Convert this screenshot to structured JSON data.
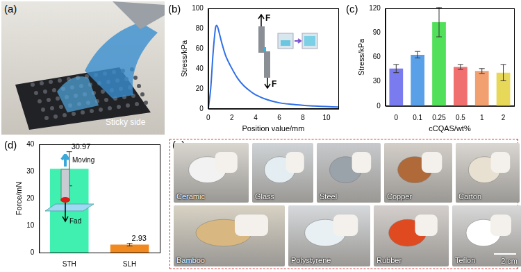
{
  "figure": {
    "panels": [
      {
        "label": "(a)",
        "caption": "Sticky side"
      },
      {
        "label": "(e)",
        "items": [
          "Ceramic",
          "Glass",
          "Steel",
          "Copper",
          "Carton",
          "Bamboo",
          "Polystyrene",
          "Rubber",
          "Teflon"
        ],
        "scale_bar": "2 cm"
      }
    ]
  },
  "chart_data": [
    {
      "panel": "(b)",
      "type": "line",
      "x": [
        0,
        0.2,
        0.4,
        0.6,
        0.7,
        0.8,
        1,
        1.2,
        1.5,
        2,
        2.5,
        3,
        3.5,
        4,
        5,
        6,
        7,
        8,
        9,
        10,
        11
      ],
      "values": [
        0,
        20,
        55,
        80,
        83,
        81,
        72,
        63,
        52,
        40,
        30,
        23,
        18,
        14,
        9,
        6,
        4.5,
        3.5,
        2.8,
        2.2,
        1.8
      ],
      "x_label": "Position value/mm",
      "y_label": "Stress/kPa",
      "xlim": [
        0,
        11
      ],
      "xticks": [
        0,
        2,
        4,
        6,
        8,
        10
      ],
      "ylim": [
        0,
        100
      ],
      "yticks": [
        0,
        20,
        40,
        60,
        80,
        100
      ],
      "color": "#2f6fe8",
      "grid": false,
      "annotations": [
        "F",
        "F"
      ]
    },
    {
      "panel": "(c)",
      "type": "bar",
      "categories": [
        "0",
        "0.1",
        "0.25",
        "0.5",
        "1",
        "2"
      ],
      "values": [
        46,
        63,
        103,
        48,
        43,
        41
      ],
      "errors": [
        5,
        4,
        18,
        3,
        3,
        10
      ],
      "colors": [
        "#7b7bf0",
        "#5aa0e8",
        "#52e05a",
        "#f07070",
        "#f2a070",
        "#e8d85a"
      ],
      "x_label": "cCQAS/wt%",
      "y_label": "Stress/kPa",
      "ylim": [
        0,
        120
      ],
      "yticks": [
        0,
        30,
        60,
        90,
        120
      ],
      "grid": false
    },
    {
      "panel": "(d)",
      "type": "bar",
      "categories": [
        "STH",
        "SLH"
      ],
      "values": [
        30.97,
        2.93
      ],
      "errors": [
        6.3,
        0.5
      ],
      "colors": [
        "#3ff0b0",
        "#f08a20"
      ],
      "y_label": "Force/mN",
      "ylim": [
        0,
        40
      ],
      "yticks": [
        0,
        10,
        20,
        30,
        40
      ],
      "data_labels": true,
      "grid": false,
      "annotations": [
        "Moving",
        "Fad"
      ]
    }
  ]
}
